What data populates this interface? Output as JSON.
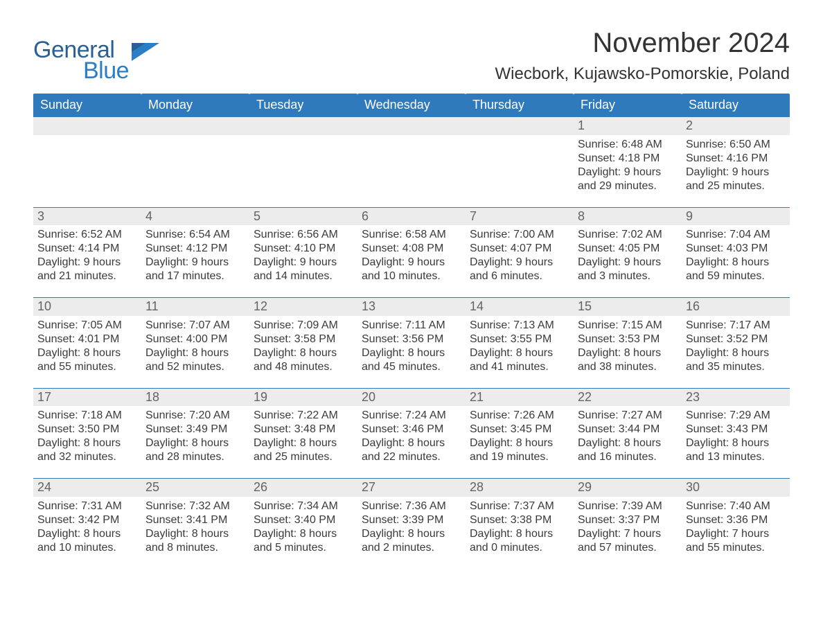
{
  "brand": {
    "word1": "General",
    "word2": "Blue"
  },
  "title": "November 2024",
  "location": "Wiecbork, Kujawsko-Pomorskie, Poland",
  "colors": {
    "header_bg": "#2f79bd",
    "header_text": "#ffffff",
    "row_border": "#2f79bd",
    "daynum_bg": "#ececec",
    "daynum_text": "#636363",
    "body_text": "#3a3a3a",
    "logo_general": "#2a5f96",
    "logo_blue": "#2a7ec5",
    "page_bg": "#ffffff"
  },
  "typography": {
    "title_fontsize": 40,
    "location_fontsize": 24,
    "header_fontsize": 18,
    "daynum_fontsize": 18,
    "body_fontsize": 16,
    "logo_fontsize": 34,
    "font_family": "Arial"
  },
  "columns": [
    "Sunday",
    "Monday",
    "Tuesday",
    "Wednesday",
    "Thursday",
    "Friday",
    "Saturday"
  ],
  "weeks": [
    [
      {
        "blank": true
      },
      {
        "blank": true
      },
      {
        "blank": true
      },
      {
        "blank": true
      },
      {
        "blank": true
      },
      {
        "n": "1",
        "sunrise": "Sunrise: 6:48 AM",
        "sunset": "Sunset: 4:18 PM",
        "d1": "Daylight: 9 hours",
        "d2": "and 29 minutes."
      },
      {
        "n": "2",
        "sunrise": "Sunrise: 6:50 AM",
        "sunset": "Sunset: 4:16 PM",
        "d1": "Daylight: 9 hours",
        "d2": "and 25 minutes."
      }
    ],
    [
      {
        "n": "3",
        "sunrise": "Sunrise: 6:52 AM",
        "sunset": "Sunset: 4:14 PM",
        "d1": "Daylight: 9 hours",
        "d2": "and 21 minutes."
      },
      {
        "n": "4",
        "sunrise": "Sunrise: 6:54 AM",
        "sunset": "Sunset: 4:12 PM",
        "d1": "Daylight: 9 hours",
        "d2": "and 17 minutes."
      },
      {
        "n": "5",
        "sunrise": "Sunrise: 6:56 AM",
        "sunset": "Sunset: 4:10 PM",
        "d1": "Daylight: 9 hours",
        "d2": "and 14 minutes."
      },
      {
        "n": "6",
        "sunrise": "Sunrise: 6:58 AM",
        "sunset": "Sunset: 4:08 PM",
        "d1": "Daylight: 9 hours",
        "d2": "and 10 minutes."
      },
      {
        "n": "7",
        "sunrise": "Sunrise: 7:00 AM",
        "sunset": "Sunset: 4:07 PM",
        "d1": "Daylight: 9 hours",
        "d2": "and 6 minutes."
      },
      {
        "n": "8",
        "sunrise": "Sunrise: 7:02 AM",
        "sunset": "Sunset: 4:05 PM",
        "d1": "Daylight: 9 hours",
        "d2": "and 3 minutes."
      },
      {
        "n": "9",
        "sunrise": "Sunrise: 7:04 AM",
        "sunset": "Sunset: 4:03 PM",
        "d1": "Daylight: 8 hours",
        "d2": "and 59 minutes."
      }
    ],
    [
      {
        "n": "10",
        "sunrise": "Sunrise: 7:05 AM",
        "sunset": "Sunset: 4:01 PM",
        "d1": "Daylight: 8 hours",
        "d2": "and 55 minutes."
      },
      {
        "n": "11",
        "sunrise": "Sunrise: 7:07 AM",
        "sunset": "Sunset: 4:00 PM",
        "d1": "Daylight: 8 hours",
        "d2": "and 52 minutes."
      },
      {
        "n": "12",
        "sunrise": "Sunrise: 7:09 AM",
        "sunset": "Sunset: 3:58 PM",
        "d1": "Daylight: 8 hours",
        "d2": "and 48 minutes."
      },
      {
        "n": "13",
        "sunrise": "Sunrise: 7:11 AM",
        "sunset": "Sunset: 3:56 PM",
        "d1": "Daylight: 8 hours",
        "d2": "and 45 minutes."
      },
      {
        "n": "14",
        "sunrise": "Sunrise: 7:13 AM",
        "sunset": "Sunset: 3:55 PM",
        "d1": "Daylight: 8 hours",
        "d2": "and 41 minutes."
      },
      {
        "n": "15",
        "sunrise": "Sunrise: 7:15 AM",
        "sunset": "Sunset: 3:53 PM",
        "d1": "Daylight: 8 hours",
        "d2": "and 38 minutes."
      },
      {
        "n": "16",
        "sunrise": "Sunrise: 7:17 AM",
        "sunset": "Sunset: 3:52 PM",
        "d1": "Daylight: 8 hours",
        "d2": "and 35 minutes."
      }
    ],
    [
      {
        "n": "17",
        "sunrise": "Sunrise: 7:18 AM",
        "sunset": "Sunset: 3:50 PM",
        "d1": "Daylight: 8 hours",
        "d2": "and 32 minutes."
      },
      {
        "n": "18",
        "sunrise": "Sunrise: 7:20 AM",
        "sunset": "Sunset: 3:49 PM",
        "d1": "Daylight: 8 hours",
        "d2": "and 28 minutes."
      },
      {
        "n": "19",
        "sunrise": "Sunrise: 7:22 AM",
        "sunset": "Sunset: 3:48 PM",
        "d1": "Daylight: 8 hours",
        "d2": "and 25 minutes."
      },
      {
        "n": "20",
        "sunrise": "Sunrise: 7:24 AM",
        "sunset": "Sunset: 3:46 PM",
        "d1": "Daylight: 8 hours",
        "d2": "and 22 minutes."
      },
      {
        "n": "21",
        "sunrise": "Sunrise: 7:26 AM",
        "sunset": "Sunset: 3:45 PM",
        "d1": "Daylight: 8 hours",
        "d2": "and 19 minutes."
      },
      {
        "n": "22",
        "sunrise": "Sunrise: 7:27 AM",
        "sunset": "Sunset: 3:44 PM",
        "d1": "Daylight: 8 hours",
        "d2": "and 16 minutes."
      },
      {
        "n": "23",
        "sunrise": "Sunrise: 7:29 AM",
        "sunset": "Sunset: 3:43 PM",
        "d1": "Daylight: 8 hours",
        "d2": "and 13 minutes."
      }
    ],
    [
      {
        "n": "24",
        "sunrise": "Sunrise: 7:31 AM",
        "sunset": "Sunset: 3:42 PM",
        "d1": "Daylight: 8 hours",
        "d2": "and 10 minutes."
      },
      {
        "n": "25",
        "sunrise": "Sunrise: 7:32 AM",
        "sunset": "Sunset: 3:41 PM",
        "d1": "Daylight: 8 hours",
        "d2": "and 8 minutes."
      },
      {
        "n": "26",
        "sunrise": "Sunrise: 7:34 AM",
        "sunset": "Sunset: 3:40 PM",
        "d1": "Daylight: 8 hours",
        "d2": "and 5 minutes."
      },
      {
        "n": "27",
        "sunrise": "Sunrise: 7:36 AM",
        "sunset": "Sunset: 3:39 PM",
        "d1": "Daylight: 8 hours",
        "d2": "and 2 minutes."
      },
      {
        "n": "28",
        "sunrise": "Sunrise: 7:37 AM",
        "sunset": "Sunset: 3:38 PM",
        "d1": "Daylight: 8 hours",
        "d2": "and 0 minutes."
      },
      {
        "n": "29",
        "sunrise": "Sunrise: 7:39 AM",
        "sunset": "Sunset: 3:37 PM",
        "d1": "Daylight: 7 hours",
        "d2": "and 57 minutes."
      },
      {
        "n": "30",
        "sunrise": "Sunrise: 7:40 AM",
        "sunset": "Sunset: 3:36 PM",
        "d1": "Daylight: 7 hours",
        "d2": "and 55 minutes."
      }
    ]
  ]
}
